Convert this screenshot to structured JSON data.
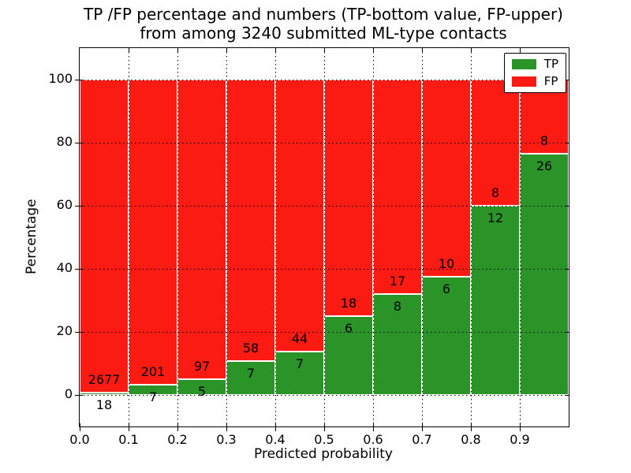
{
  "figure": {
    "title_line1": "TP /FP percentage and numbers (TP-bottom value, FP-upper)",
    "title_line2": "from among 3240 submitted ML-type contacts"
  },
  "chart_data": {
    "type": "bar",
    "stacked": true,
    "normalized_to_percent": true,
    "title": "TP /FP percentage and numbers (TP-bottom value, FP-upper) from among 3240 submitted ML-type contacts",
    "xlabel": "Predicted probability",
    "ylabel": "Percentage",
    "xlim": [
      0.0,
      1.0
    ],
    "ylim": [
      -10,
      110
    ],
    "bin_width": 0.1,
    "bin_starts": [
      0.0,
      0.1,
      0.2,
      0.3,
      0.4,
      0.5,
      0.6,
      0.7,
      0.8,
      0.9
    ],
    "xtick_labels": [
      "0.0",
      "0.1",
      "0.2",
      "0.3",
      "0.4",
      "0.5",
      "0.6",
      "0.7",
      "0.8",
      "0.9"
    ],
    "yticks": [
      0,
      20,
      40,
      60,
      80,
      100
    ],
    "grid": {
      "style": "dotted",
      "color": "#000000",
      "drawn_above_bars": true
    },
    "bar_edge_color": "#ffffff",
    "series": [
      {
        "name": "TP",
        "color": "#2a9428",
        "counts": [
          18,
          7,
          5,
          7,
          7,
          6,
          8,
          6,
          12,
          26
        ],
        "percent": [
          0.67,
          3.37,
          4.9,
          10.77,
          13.73,
          25.0,
          32.0,
          37.5,
          60.0,
          76.47
        ]
      },
      {
        "name": "FP",
        "color": "#fb1b13",
        "counts": [
          2677,
          201,
          97,
          58,
          44,
          18,
          17,
          10,
          8,
          8
        ],
        "percent": [
          99.33,
          96.63,
          95.1,
          89.23,
          86.27,
          75.0,
          68.0,
          62.5,
          40.0,
          23.53
        ]
      }
    ],
    "legend": {
      "position": "upper right",
      "entries": [
        "TP",
        "FP"
      ]
    }
  }
}
